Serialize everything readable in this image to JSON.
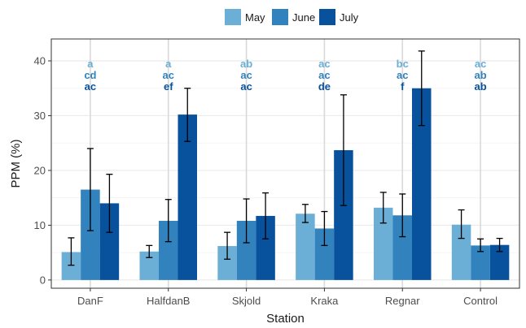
{
  "chart_data": {
    "type": "bar",
    "xlabel": "Station",
    "ylabel": "PPM (%)",
    "ylim": [
      -1.5,
      44
    ],
    "yticks": [
      0,
      10,
      20,
      30,
      40
    ],
    "grid": true,
    "legend_position": "top",
    "categories": [
      "DanF",
      "HalfdanB",
      "Skjold",
      "Kraka",
      "Regnar",
      "Control"
    ],
    "series": [
      {
        "name": "May",
        "color": "#6baed6",
        "values": [
          5.1,
          5.2,
          6.2,
          12.1,
          13.2,
          10.1
        ],
        "err_low": [
          2.7,
          4.1,
          3.8,
          10.5,
          10.4,
          7.6
        ],
        "err_high": [
          7.7,
          6.3,
          8.7,
          13.8,
          16.0,
          12.8
        ],
        "significance": [
          "a",
          "a",
          "ab",
          "ac",
          "bc",
          "ac"
        ]
      },
      {
        "name": "June",
        "color": "#3182bd",
        "values": [
          16.5,
          10.8,
          10.8,
          9.4,
          11.8,
          6.3
        ],
        "err_low": [
          9.0,
          7.0,
          6.8,
          6.3,
          7.9,
          5.2
        ],
        "err_high": [
          24.0,
          14.7,
          14.8,
          12.5,
          15.7,
          7.5
        ],
        "significance": [
          "cd",
          "ac",
          "ac",
          "ac",
          "ac",
          "ab"
        ]
      },
      {
        "name": "July",
        "color": "#08519c",
        "values": [
          14.0,
          30.2,
          11.7,
          23.7,
          35.0,
          6.4
        ],
        "err_low": [
          8.7,
          25.3,
          7.5,
          13.6,
          28.2,
          5.2
        ],
        "err_high": [
          19.3,
          35.0,
          15.9,
          33.8,
          41.8,
          7.6
        ],
        "significance": [
          "ac",
          "ef",
          "ac",
          "de",
          "f",
          "ab"
        ]
      }
    ]
  }
}
